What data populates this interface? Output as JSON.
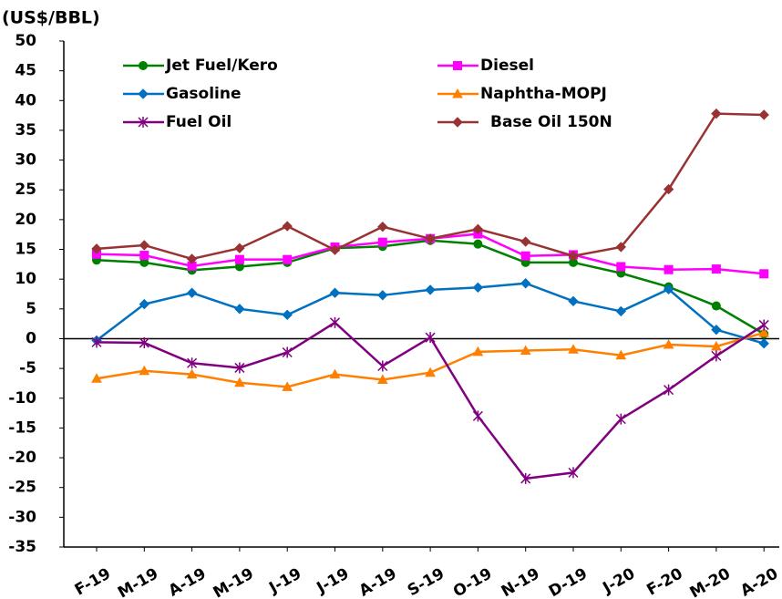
{
  "chart_data": {
    "type": "line",
    "y_label": "(US$/BBL)",
    "categories": [
      "F-19",
      "M-19",
      "A-19",
      "M-19",
      "J-19",
      "J-19",
      "A-19",
      "S-19",
      "O-19",
      "N-19",
      "D-19",
      "J-20",
      "F-20",
      "M-20",
      "A-20"
    ],
    "ylim": [
      -35,
      50
    ],
    "yticks": [
      -35,
      -30,
      -25,
      -20,
      -15,
      -10,
      -5,
      0,
      5,
      10,
      15,
      20,
      25,
      30,
      35,
      40,
      45,
      50
    ],
    "series": [
      {
        "name": "Jet Fuel/Kero",
        "color": "#008000",
        "marker": "circle",
        "values": [
          13.2,
          12.8,
          11.5,
          12.1,
          12.8,
          15.2,
          15.5,
          16.5,
          15.9,
          12.8,
          12.8,
          11.0,
          8.7,
          5.5,
          0.8
        ]
      },
      {
        "name": "Diesel",
        "color": "#ff00ff",
        "marker": "square",
        "values": [
          14.2,
          14.0,
          12.2,
          13.3,
          13.3,
          15.4,
          16.2,
          16.8,
          17.6,
          13.9,
          14.1,
          12.1,
          11.6,
          11.7,
          10.9
        ]
      },
      {
        "name": "Gasoline",
        "color": "#0070c0",
        "marker": "diamond",
        "values": [
          -0.3,
          5.8,
          7.7,
          5.0,
          4.0,
          7.7,
          7.3,
          8.2,
          8.6,
          9.3,
          6.3,
          4.6,
          8.3,
          1.5,
          -0.8
        ]
      },
      {
        "name": "Naphtha-MOPJ",
        "color": "#ff7f00",
        "marker": "triangle",
        "values": [
          -6.7,
          -5.4,
          -6.0,
          -7.4,
          -8.1,
          -6.0,
          -6.9,
          -5.7,
          -2.2,
          -2.0,
          -1.8,
          -2.8,
          -1.0,
          -1.3,
          1.0
        ]
      },
      {
        "name": "Fuel Oil",
        "color": "#800080",
        "marker": "star",
        "values": [
          -0.6,
          -0.7,
          -4.1,
          -4.9,
          -2.3,
          2.7,
          -4.6,
          0.2,
          -13.0,
          -23.5,
          -22.5,
          -13.5,
          -8.6,
          -2.9,
          2.3
        ]
      },
      {
        "name": "Base Oil 150N",
        "color": "#993333",
        "marker": "diamond",
        "values": [
          15.1,
          15.7,
          13.4,
          15.2,
          18.9,
          14.9,
          18.8,
          16.8,
          18.4,
          16.3,
          13.9,
          15.4,
          25.1,
          37.8,
          37.6
        ]
      }
    ]
  }
}
